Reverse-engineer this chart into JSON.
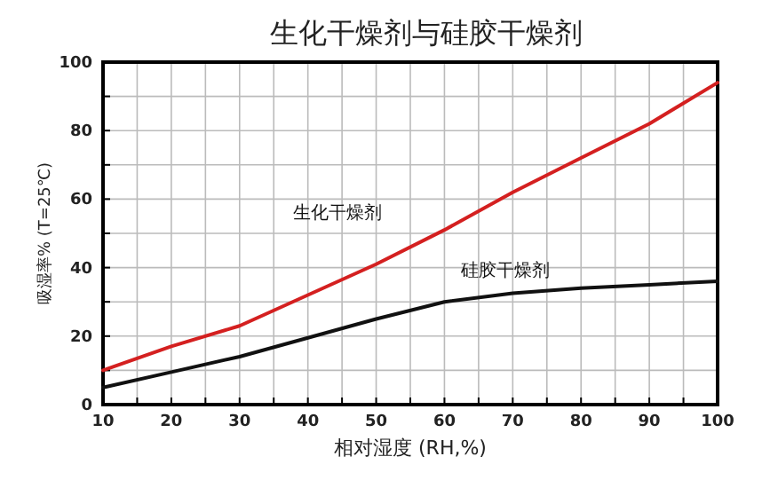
{
  "chart_data": {
    "type": "line",
    "title": "生化干燥剂与硅胶干燥剂",
    "xlabel": "相对湿度 (RH,%)",
    "ylabel": "吸湿率% (T=25℃)",
    "x": [
      10,
      20,
      30,
      40,
      50,
      60,
      70,
      80,
      90,
      100
    ],
    "series": [
      {
        "name": "生化干燥剂",
        "color": "#d42020",
        "values": [
          10,
          17,
          23,
          32,
          41,
          51,
          62,
          72,
          82,
          94
        ]
      },
      {
        "name": "硅胶干燥剂",
        "color": "#111111",
        "values": [
          5,
          9.5,
          14,
          19.5,
          25,
          30,
          32.5,
          34,
          35,
          36
        ]
      }
    ],
    "xlim": [
      10,
      100
    ],
    "ylim": [
      0,
      100
    ],
    "xticks": [
      10,
      {
        "value": 15,
        "label": null
      },
      20,
      {
        "value": 25,
        "label": null
      },
      30,
      {
        "value": 35,
        "label": null
      },
      40,
      {
        "value": 45,
        "label": null
      },
      50,
      {
        "value": 55,
        "label": null
      },
      60,
      {
        "value": 65,
        "label": null
      },
      70,
      {
        "value": 75,
        "label": null
      },
      80,
      {
        "value": 85,
        "label": null
      },
      90,
      {
        "value": 95,
        "label": null
      },
      100
    ],
    "yticks": [
      0,
      {
        "value": 10,
        "label": null
      },
      20,
      {
        "value": 30,
        "label": null
      },
      40,
      {
        "value": 50,
        "label": null
      },
      60,
      {
        "value": 70,
        "label": null
      },
      80,
      {
        "value": 90,
        "label": null
      },
      100
    ],
    "grid": true,
    "marker": "none",
    "line_style": "solid"
  }
}
